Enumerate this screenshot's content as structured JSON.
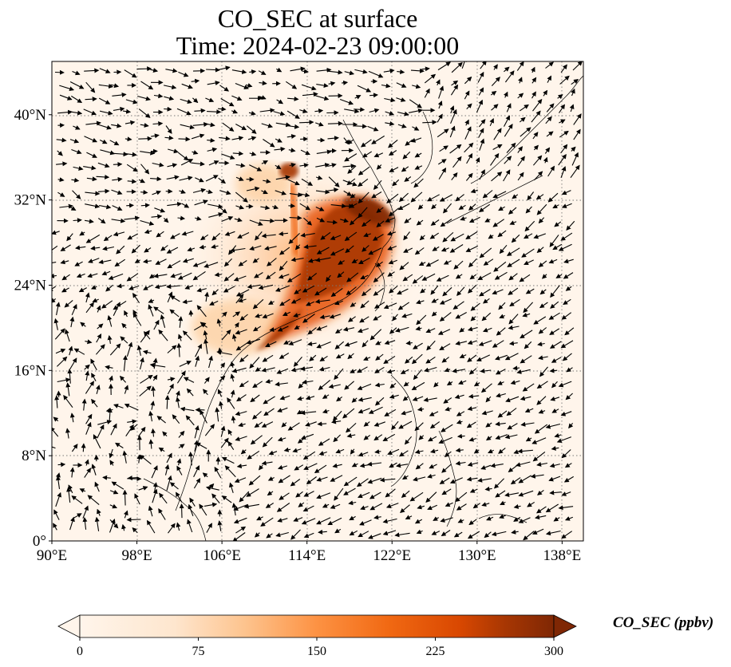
{
  "title": {
    "line1": "CO_SEC at surface",
    "line2": "Time: 2024-02-23 09:00:00"
  },
  "map": {
    "lon_range": [
      90,
      140
    ],
    "lat_range": [
      0,
      45
    ],
    "lat_ticks": [
      {
        "value": 0,
        "label": "0°"
      },
      {
        "value": 8,
        "label": "8°N"
      },
      {
        "value": 16,
        "label": "16°N"
      },
      {
        "value": 24,
        "label": "24°N"
      },
      {
        "value": 32,
        "label": "32°N"
      },
      {
        "value": 40,
        "label": "40°N"
      }
    ],
    "lon_ticks": [
      {
        "value": 90,
        "label": "90°E"
      },
      {
        "value": 98,
        "label": "98°E"
      },
      {
        "value": 106,
        "label": "106°E"
      },
      {
        "value": 114,
        "label": "114°E"
      },
      {
        "value": 122,
        "label": "122°E"
      },
      {
        "value": 130,
        "label": "130°E"
      },
      {
        "value": 138,
        "label": "138°E"
      }
    ],
    "background_color": "#fff5eb",
    "gridlines": "dotted"
  },
  "colorbar": {
    "label": "CO_SEC (ppbv)",
    "min": 0,
    "max": 300,
    "ticks": [
      0,
      75,
      150,
      225,
      300
    ],
    "colormap": [
      "#fff5eb",
      "#fdd9b4",
      "#fda762",
      "#f3701b",
      "#c54102",
      "#7f2704"
    ],
    "extend": "both"
  },
  "plume": {
    "description_lon_lat_center": [
      116,
      27
    ],
    "max_value": 300
  }
}
